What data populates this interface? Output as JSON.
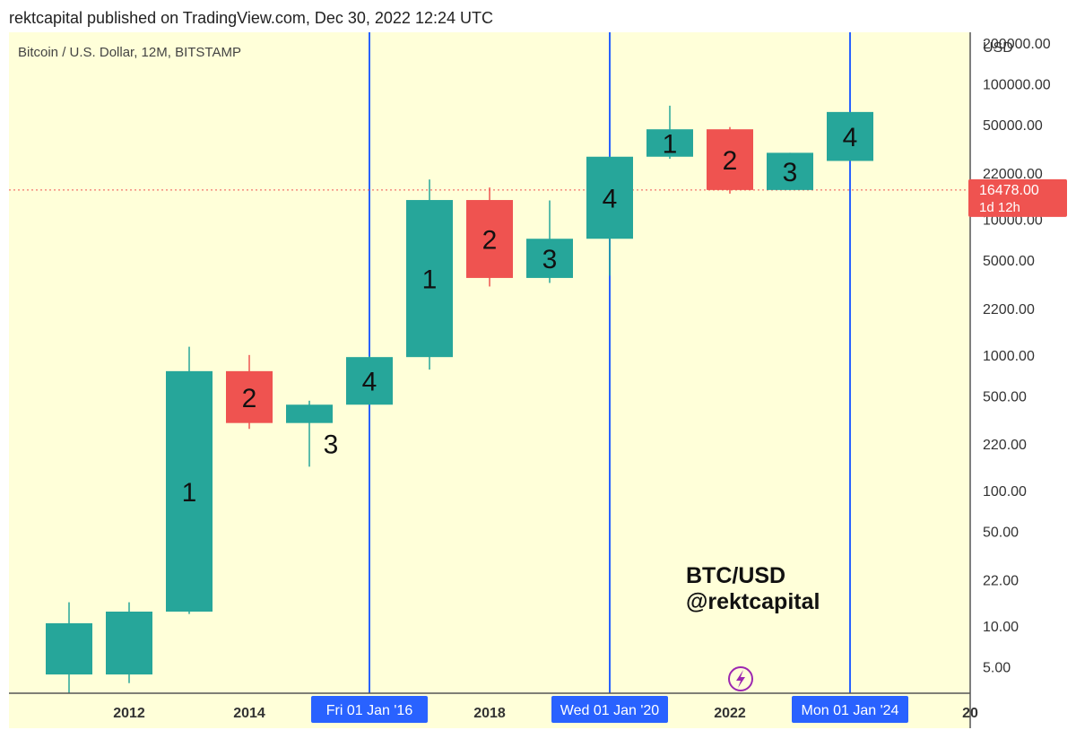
{
  "header": {
    "published_by": "rektcapital published on TradingView.com, Dec 30, 2022 12:24 UTC"
  },
  "legend": {
    "symbol": "Bitcoin / U.S. Dollar, 12M, BITSTAMP"
  },
  "watermark": {
    "line1": "BTC/USD",
    "line2": "@rektcapital"
  },
  "colors": {
    "background": "#ffffd9",
    "up_candle": "#26a69a",
    "down_candle": "#ef5350",
    "cycle_line": "#2962ff",
    "price_line": "#ef5350",
    "logo": "#9c27b0"
  },
  "chart_data": {
    "type": "candlestick",
    "y_scale": "log",
    "y_unit": "USD",
    "ylim": [
      3.2,
      240000
    ],
    "xlim": [
      2010.0,
      2026.0
    ],
    "y_ticks": [
      {
        "value": 200000,
        "label": "200000.00"
      },
      {
        "value": 100000,
        "label": "100000.00"
      },
      {
        "value": 50000,
        "label": "50000.00"
      },
      {
        "value": 22000,
        "label": "22000.00"
      },
      {
        "value": 10000,
        "label": "10000.00"
      },
      {
        "value": 5000,
        "label": "5000.00"
      },
      {
        "value": 2200,
        "label": "2200.00"
      },
      {
        "value": 1000,
        "label": "1000.00"
      },
      {
        "value": 500,
        "label": "500.00"
      },
      {
        "value": 220,
        "label": "220.00"
      },
      {
        "value": 100,
        "label": "100.00"
      },
      {
        "value": 50,
        "label": "50.00"
      },
      {
        "value": 22,
        "label": "22.00"
      },
      {
        "value": 10,
        "label": "10.00"
      },
      {
        "value": 5,
        "label": "5.00"
      }
    ],
    "x_ticks": [
      {
        "year": 2012,
        "label": "2012"
      },
      {
        "year": 2014,
        "label": "2014"
      },
      {
        "year": 2018,
        "label": "2018"
      },
      {
        "year": 2022,
        "label": "2022"
      },
      {
        "year": 2026,
        "label": "20"
      }
    ],
    "candles": [
      {
        "year": 2011,
        "open": 4.4,
        "high": 15,
        "low": 3.2,
        "close": 10.5,
        "label": ""
      },
      {
        "year": 2012,
        "open": 4.4,
        "high": 15,
        "low": 3.8,
        "close": 12.8,
        "label": ""
      },
      {
        "year": 2013,
        "open": 12.8,
        "high": 1150,
        "low": 12.3,
        "close": 760,
        "label": "1"
      },
      {
        "year": 2014,
        "open": 760,
        "high": 1000,
        "low": 285,
        "close": 315,
        "label": "2"
      },
      {
        "year": 2015,
        "open": 315,
        "high": 460,
        "low": 150,
        "close": 430,
        "label": "3"
      },
      {
        "year": 2016,
        "open": 430,
        "high": 980,
        "low": 430,
        "close": 965,
        "label": "4"
      },
      {
        "year": 2017,
        "open": 965,
        "high": 19700,
        "low": 780,
        "close": 13900,
        "label": "1"
      },
      {
        "year": 2018,
        "open": 13900,
        "high": 17200,
        "low": 3200,
        "close": 3700,
        "label": "2"
      },
      {
        "year": 2019,
        "open": 3700,
        "high": 13800,
        "low": 3400,
        "close": 7200,
        "label": "3"
      },
      {
        "year": 2020,
        "open": 7200,
        "high": 29000,
        "low": 3850,
        "close": 29000,
        "label": "4"
      },
      {
        "year": 2021,
        "open": 29000,
        "high": 69000,
        "low": 28000,
        "close": 46200,
        "label": "1"
      },
      {
        "year": 2022,
        "open": 46200,
        "high": 48000,
        "low": 15500,
        "close": 16478,
        "label": "2"
      },
      {
        "year": 2023,
        "open": 16478,
        "high": 31000,
        "low": 16478,
        "close": 31000,
        "label": "3"
      },
      {
        "year": 2024,
        "open": 27000,
        "high": 62000,
        "low": 27000,
        "close": 62000,
        "label": "4"
      }
    ],
    "cycle_markers": [
      {
        "year": 2016,
        "label": "Fri 01 Jan '16"
      },
      {
        "year": 2020,
        "label": "Wed 01 Jan '20"
      },
      {
        "year": 2024,
        "label": "Mon 01 Jan '24"
      }
    ],
    "current_price": {
      "value": 16478,
      "label": "16478.00",
      "countdown": "1d 12h"
    }
  }
}
